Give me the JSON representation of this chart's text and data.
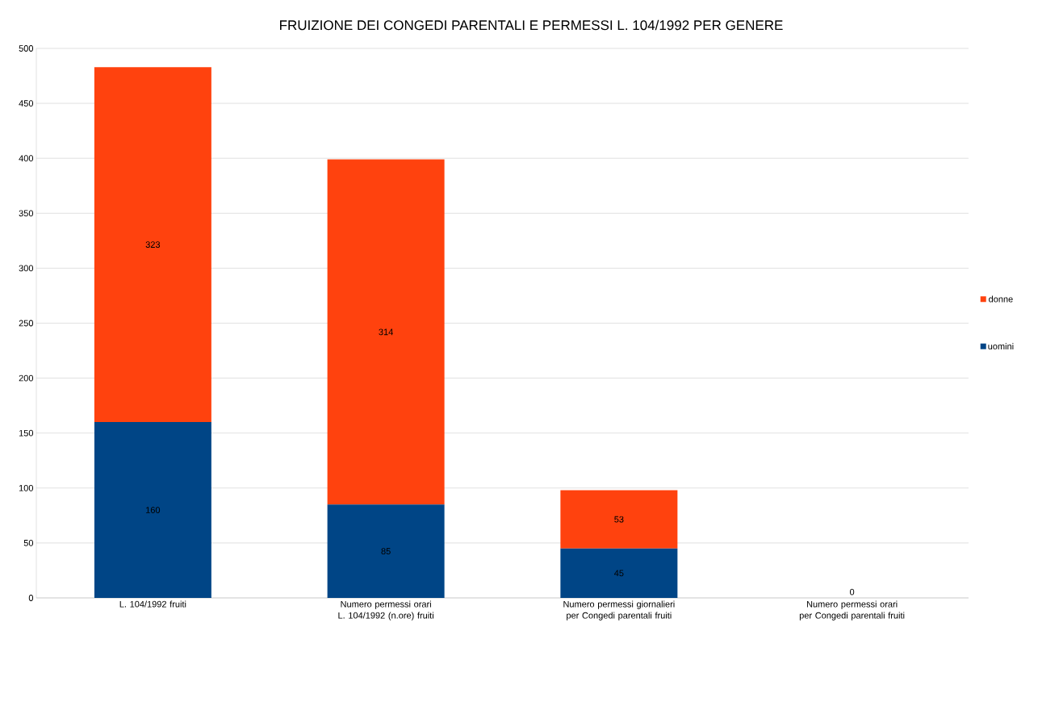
{
  "chart_data": {
    "type": "bar",
    "stacked": true,
    "title": "FRUIZIONE DEI CONGEDI PARENTALI E PERMESSI L. 104/1992 PER GENERE",
    "categories": [
      "L. 104/1992 fruiti",
      "Numero permessi orari L. 104/1992 (n.ore) fruiti",
      "Numero permessi giornalieri per Congedi parentali fruiti",
      "Numero permessi orari per Congedi parentali fruiti"
    ],
    "series": [
      {
        "name": "uomini",
        "color": "#004586",
        "values": [
          160,
          85,
          45,
          0
        ],
        "value_labels": [
          "160",
          "85",
          "45",
          null
        ]
      },
      {
        "name": "donne",
        "color": "#ff420e",
        "values": [
          323,
          314,
          53,
          0
        ],
        "value_labels": [
          "323",
          "314",
          "53",
          "0"
        ]
      }
    ],
    "ylim": [
      0,
      500
    ],
    "yticks": [
      0,
      50,
      100,
      150,
      200,
      250,
      300,
      350,
      400,
      450,
      500
    ],
    "grid": "y",
    "legend": "right"
  }
}
